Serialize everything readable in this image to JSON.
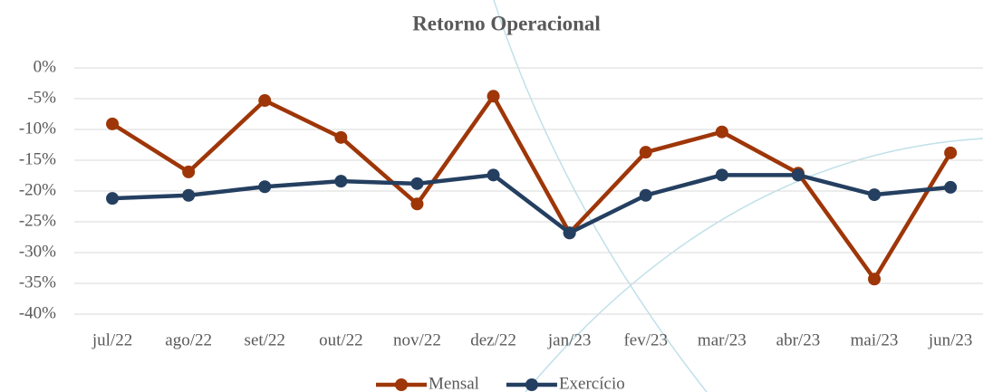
{
  "chart_data": {
    "type": "line",
    "title": "Retorno Operacional",
    "categories": [
      "jul/22",
      "ago/22",
      "set/22",
      "out/22",
      "nov/22",
      "dez/22",
      "jan/23",
      "fev/23",
      "mar/23",
      "abr/23",
      "mai/23",
      "jun/23"
    ],
    "series": [
      {
        "name": "Mensal",
        "color": "#9e3608",
        "values": [
          -9.1,
          -16.9,
          -5.3,
          -11.3,
          -22.1,
          -4.6,
          -26.8,
          -13.7,
          -10.4,
          -17.1,
          -34.3,
          -13.8
        ]
      },
      {
        "name": "Exercício",
        "color": "#243f60",
        "values": [
          -21.2,
          -20.7,
          -19.3,
          -18.4,
          -18.8,
          -17.4,
          -26.8,
          -20.7,
          -17.4,
          -17.4,
          -20.6,
          -19.4
        ]
      }
    ],
    "ylim": [
      -40,
      0
    ],
    "yticks": [
      {
        "value": 0,
        "label": "0%"
      },
      {
        "value": -5,
        "label": "-5%"
      },
      {
        "value": -10,
        "label": "-10%"
      },
      {
        "value": -15,
        "label": "-15%"
      },
      {
        "value": -20,
        "label": "-20%"
      },
      {
        "value": -25,
        "label": "-25%"
      },
      {
        "value": -30,
        "label": "-30%"
      },
      {
        "value": -35,
        "label": "-35%"
      },
      {
        "value": -40,
        "label": "-40%"
      }
    ],
    "grid": true,
    "legend": "bottom"
  }
}
